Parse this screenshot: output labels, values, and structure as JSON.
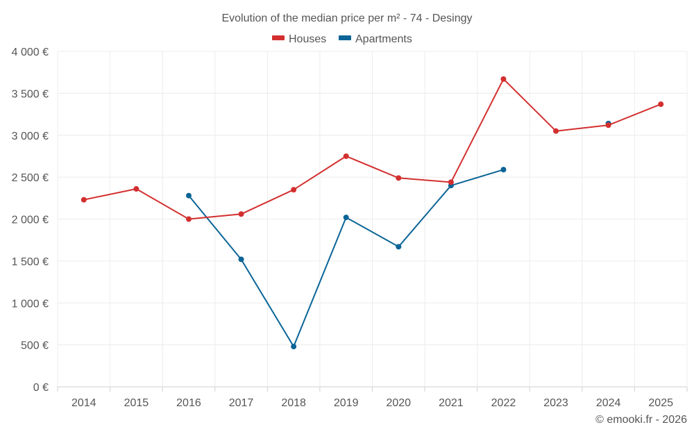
{
  "chart_data": {
    "type": "line",
    "title": "Evolution of the median price per m² - 74 - Desingy",
    "categories": [
      "2014",
      "2015",
      "2016",
      "2017",
      "2018",
      "2019",
      "2020",
      "2021",
      "2022",
      "2023",
      "2024",
      "2025"
    ],
    "ylim": [
      0,
      4000
    ],
    "yticks": [
      0,
      500,
      1000,
      1500,
      2000,
      2500,
      3000,
      3500,
      4000
    ],
    "ytick_labels": [
      "0 €",
      "500 €",
      "1 000 €",
      "1 500 €",
      "2 000 €",
      "2 500 €",
      "3 000 €",
      "3 500 €",
      "4 000 €"
    ],
    "grid": true,
    "legend_position": "top-center",
    "series": [
      {
        "name": "Houses",
        "color": "#d32f2f",
        "values": [
          2230,
          2360,
          2000,
          2060,
          2350,
          2750,
          2490,
          2440,
          3670,
          3050,
          3120,
          3370
        ]
      },
      {
        "name": "Apartments",
        "color": "#0a6496",
        "values": [
          null,
          null,
          2280,
          1520,
          480,
          2020,
          1670,
          2400,
          2590,
          null,
          3140,
          null
        ]
      }
    ]
  },
  "credit": "© emooki.fr - 2026"
}
